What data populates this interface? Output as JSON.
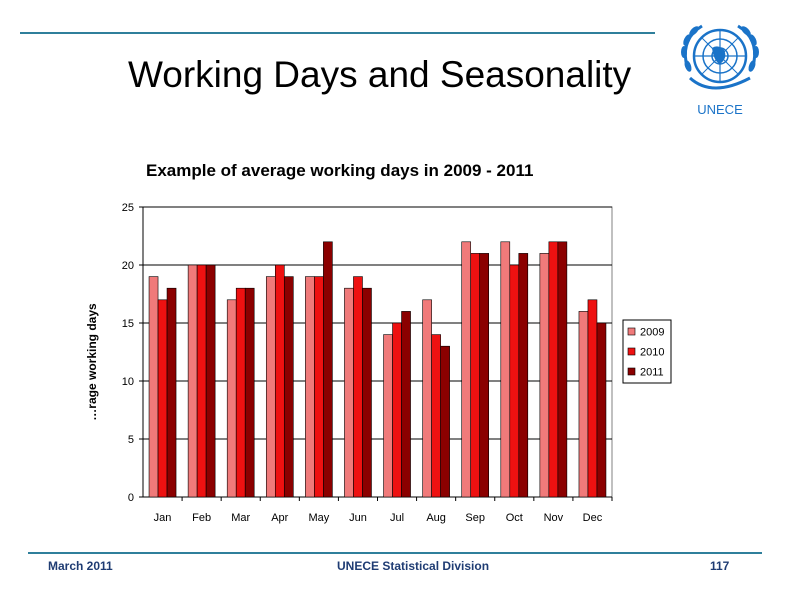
{
  "slide": {
    "title": "Working Days and Seasonality",
    "logo_text": "UNECE",
    "footer_left": "March 2011",
    "footer_center": "UNECE Statistical Division",
    "footer_right": "117"
  },
  "colors": {
    "rule": "#2f7f9b",
    "footer_text": "#1f3c73",
    "logo": "#1a73c8"
  },
  "icons": {
    "logo": "un-emblem-icon"
  },
  "chart_data": {
    "type": "bar",
    "title": "Example of average working days in 2009 - 2011",
    "ylabel": "…rage working days",
    "xlabel": "",
    "categories": [
      "Jan",
      "Feb",
      "Mar",
      "Apr",
      "May",
      "Jun",
      "Jul",
      "Aug",
      "Sep",
      "Oct",
      "Nov",
      "Dec"
    ],
    "ylim": [
      0,
      25
    ],
    "yticks": [
      0,
      5,
      10,
      15,
      20,
      25
    ],
    "grid": true,
    "legend_position": "right",
    "series": [
      {
        "name": "2009",
        "color": "#f07a7a",
        "values": [
          19,
          20,
          17,
          19,
          19,
          18,
          14,
          17,
          22,
          22,
          21,
          16
        ]
      },
      {
        "name": "2010",
        "color": "#ee1111",
        "values": [
          17,
          20,
          18,
          20,
          19,
          19,
          15,
          14,
          21,
          20,
          22,
          17
        ]
      },
      {
        "name": "2011",
        "color": "#8b0000",
        "values": [
          18,
          20,
          18,
          19,
          22,
          18,
          16,
          13,
          21,
          21,
          22,
          15
        ]
      }
    ]
  }
}
